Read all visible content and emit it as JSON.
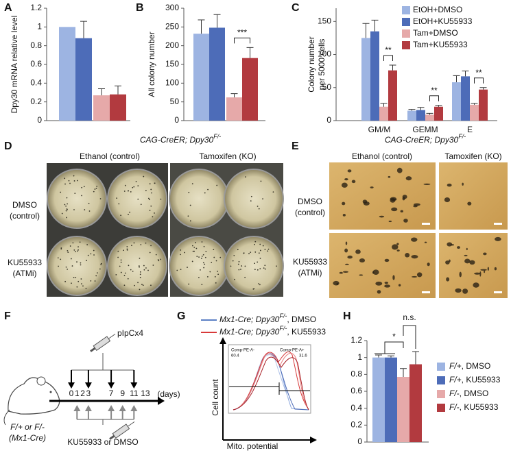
{
  "chart_data": [
    {
      "type": "bar",
      "panel": "A",
      "ylabel": "Dpy30 mRNA relative level",
      "categories": [
        null,
        null,
        null,
        null
      ],
      "values": [
        1,
        0.88,
        0.27,
        0.28
      ],
      "errors": [
        null,
        0.18,
        0.07,
        0.09
      ],
      "colors": [
        "#9db4e2",
        "#4d6cb8",
        "#e6a9a9",
        "#b23a3f"
      ],
      "ylim": [
        0,
        1.2
      ],
      "yticks": [
        0,
        0.2,
        0.4,
        0.6,
        0.8,
        1,
        1.2
      ]
    },
    {
      "type": "bar",
      "panel": "B",
      "ylabel": "All colony number",
      "categories": [
        null,
        null,
        null,
        null
      ],
      "values": [
        232,
        248,
        62,
        167
      ],
      "errors": [
        37,
        35,
        10,
        28
      ],
      "colors": [
        "#9db4e2",
        "#4d6cb8",
        "#e6a9a9",
        "#b23a3f"
      ],
      "ylim": [
        0,
        300
      ],
      "yticks": [
        0,
        50,
        100,
        150,
        200,
        250,
        300
      ],
      "annotations": [
        "***"
      ]
    },
    {
      "type": "bar",
      "panel": "C",
      "ylabel": [
        "Colony number",
        "per 5000 cells"
      ],
      "categories": [
        "GM/M",
        "GEMM",
        "E"
      ],
      "series": [
        {
          "name": "EtOH+DMSO",
          "color": "#9db4e2",
          "values": [
            125,
            15,
            58
          ],
          "errors": [
            22,
            2,
            10
          ]
        },
        {
          "name": "EtOH+KU55933",
          "color": "#4d6cb8",
          "values": [
            135,
            16,
            67
          ],
          "errors": [
            17,
            4,
            8
          ]
        },
        {
          "name": "Tam+DMSO",
          "color": "#e6a9a9",
          "values": [
            21,
            9,
            24
          ],
          "errors": [
            5,
            2,
            2
          ]
        },
        {
          "name": "Tam+KU55933",
          "color": "#b23a3f",
          "values": [
            76,
            21,
            47
          ],
          "errors": [
            8,
            2,
            3
          ]
        }
      ],
      "ylim": [
        0,
        170
      ],
      "yticks": [
        0,
        50,
        100,
        150
      ],
      "annotations": [
        "**",
        "**",
        "**"
      ]
    },
    {
      "type": "bar",
      "panel": "H",
      "categories": [
        null,
        null,
        null,
        null
      ],
      "values": [
        1,
        1,
        0.77,
        0.92
      ],
      "errors": [
        0.03,
        0.02,
        0.1,
        0.15
      ],
      "colors": [
        "#9db4e2",
        "#4d6cb8",
        "#e6a9a9",
        "#b23a3f"
      ],
      "legend": [
        [
          "F/+",
          ", DMSO"
        ],
        [
          "F/+",
          ", KU55933"
        ],
        [
          "F/-",
          ", DMSO"
        ],
        [
          "F/-",
          ", KU55933"
        ]
      ],
      "ylim": [
        0,
        1.2
      ],
      "yticks": [
        0,
        0.2,
        0.4,
        0.6,
        0.8,
        1,
        1.2
      ],
      "annotations": [
        "*",
        "n.s."
      ]
    }
  ],
  "panel_d": {
    "label": "D",
    "title": [
      "CAG-CreER; Dpy30",
      "F/-"
    ],
    "columns": [
      "Ethanol (control)",
      "Tamoxifen (KO)"
    ],
    "rows": [
      [
        "DMSO",
        "(control)"
      ],
      [
        "KU55933",
        "(ATMi)"
      ]
    ]
  },
  "panel_e": {
    "label": "E",
    "title": [
      "CAG-CreER; Dpy30",
      "F/-"
    ],
    "columns": [
      "Ethanol (control)",
      "Tamoxifen (KO)"
    ],
    "rows": [
      [
        "DMSO",
        "(control)"
      ],
      [
        "KU55933",
        "(ATMi)"
      ]
    ]
  },
  "panel_f": {
    "label": "F",
    "injection": "pIpCx4",
    "days": [
      0,
      1,
      2,
      3,
      7,
      9,
      11,
      13
    ],
    "days_unit": "(days)",
    "genotype": "F/+ or F/-",
    "strain": "(Mx1-Cre)",
    "treatment": "KU55933 or DMSO"
  },
  "panel_g": {
    "label": "G",
    "legend": [
      [
        "Mx1-Cre; Dpy30",
        "F/-",
        ", DMSO"
      ],
      [
        "Mx1-Cre; Dpy30",
        "F/-",
        ", KU55933"
      ]
    ],
    "gates": [
      {
        "name": "Comp-PE-A-",
        "value": "60.4"
      },
      {
        "name": "Comp-PE-A+",
        "value": "31.6"
      }
    ],
    "ylabel": "Cell count",
    "xlabel": "Mito. potential"
  }
}
